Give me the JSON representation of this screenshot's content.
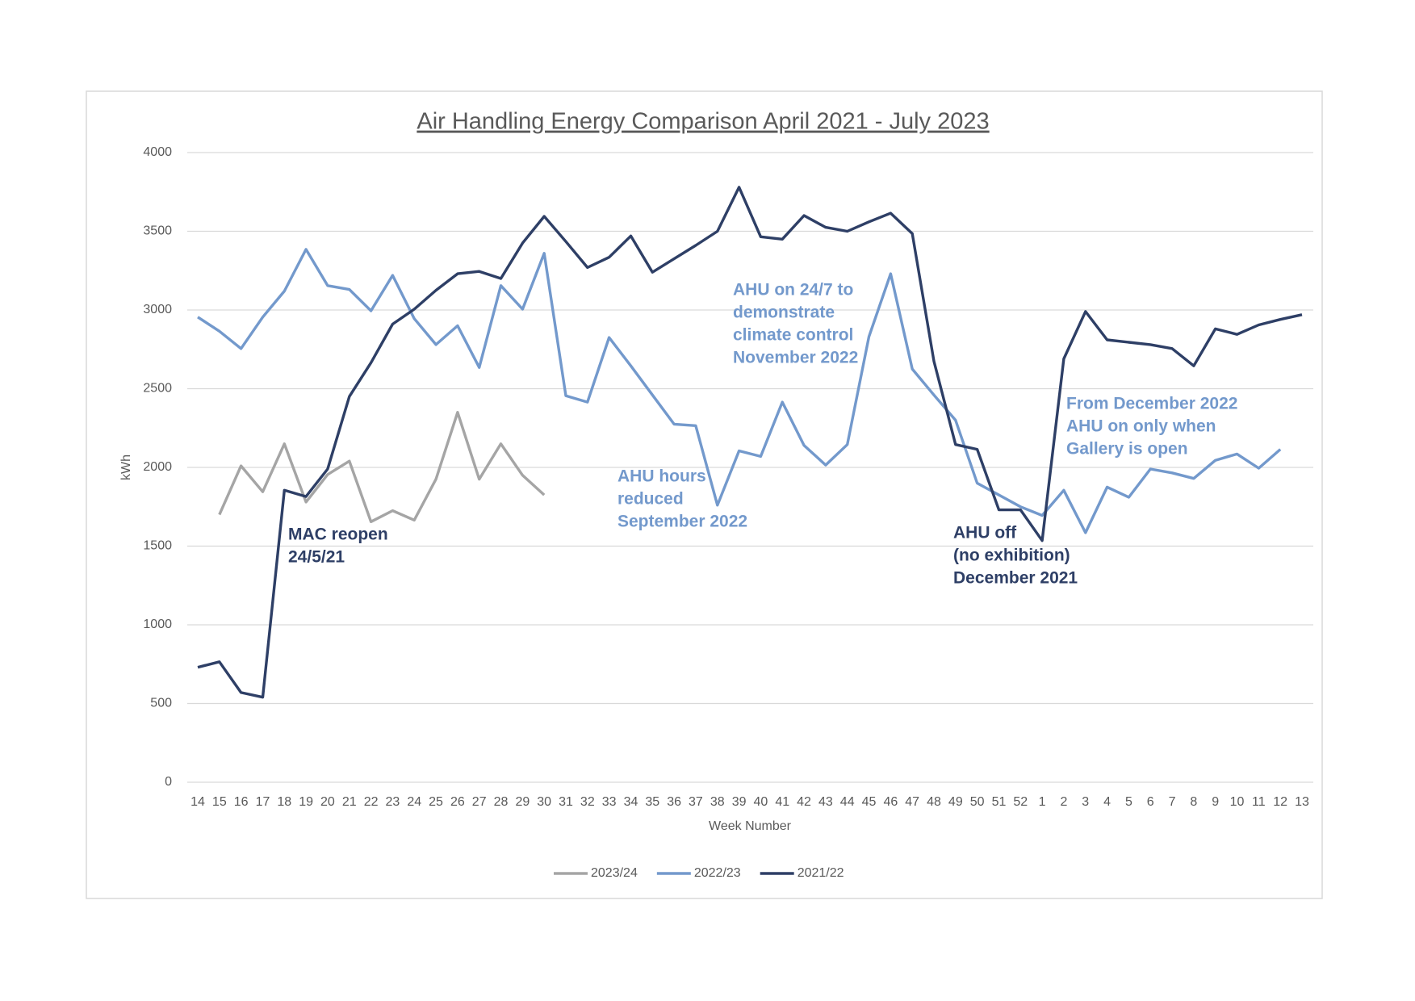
{
  "chart_data": {
    "type": "line",
    "title": "Air Handling Energy Comparison April 2021 - July 2023",
    "x_label": "Week Number",
    "y_label": "kWh",
    "categories": [
      "14",
      "15",
      "16",
      "17",
      "18",
      "19",
      "20",
      "21",
      "22",
      "23",
      "24",
      "25",
      "26",
      "27",
      "28",
      "29",
      "30",
      "31",
      "32",
      "33",
      "34",
      "35",
      "36",
      "37",
      "38",
      "39",
      "40",
      "41",
      "42",
      "43",
      "44",
      "45",
      "46",
      "47",
      "48",
      "49",
      "50",
      "51",
      "52",
      "1",
      "2",
      "3",
      "4",
      "5",
      "6",
      "7",
      "8",
      "9",
      "10",
      "11",
      "12",
      "13"
    ],
    "ylim": [
      0,
      4000
    ],
    "yticks": [
      0,
      500,
      1000,
      1500,
      2000,
      2500,
      3000,
      3500,
      4000
    ],
    "grid": true,
    "legend": "bottom",
    "series": [
      {
        "name": "2023/24",
        "color": "#a5a5a5",
        "values": [
          null,
          1700,
          2010,
          1845,
          2150,
          1780,
          1955,
          2040,
          1655,
          1725,
          1665,
          1925,
          2350,
          1925,
          2150,
          1950,
          1825,
          null,
          null,
          null,
          null,
          null,
          null,
          null,
          null,
          null,
          null,
          null,
          null,
          null,
          null,
          null,
          null,
          null,
          null,
          null,
          null,
          null,
          null,
          null,
          null,
          null,
          null,
          null,
          null,
          null,
          null,
          null,
          null,
          null,
          null,
          null
        ]
      },
      {
        "name": "2022/23",
        "color": "#7399cc",
        "values": [
          2955,
          2865,
          2755,
          2955,
          3120,
          3385,
          3155,
          3130,
          2995,
          3220,
          2945,
          2780,
          2900,
          2635,
          3155,
          3005,
          3360,
          2455,
          2415,
          2825,
          2645,
          2460,
          2275,
          2265,
          1760,
          2105,
          2070,
          2415,
          2140,
          2015,
          2145,
          2830,
          3230,
          2625,
          2460,
          2300,
          1900,
          1825,
          1750,
          1695,
          1855,
          1585,
          1875,
          1810,
          1990,
          1965,
          1930,
          2045,
          2085,
          1995,
          2115,
          null
        ]
      },
      {
        "name": "2021/22",
        "color": "#2e3f66",
        "values": [
          730,
          765,
          570,
          540,
          1855,
          1815,
          1990,
          2450,
          2665,
          2910,
          3005,
          3125,
          3230,
          3245,
          3200,
          3425,
          3595,
          3435,
          3270,
          3335,
          3470,
          3240,
          3325,
          3410,
          3500,
          3780,
          3465,
          3450,
          3600,
          3525,
          3500,
          3560,
          3615,
          3485,
          2675,
          2145,
          2115,
          1730,
          1730,
          1535,
          2690,
          2990,
          2810,
          2795,
          2780,
          2755,
          2645,
          2880,
          2845,
          2905,
          2940,
          2970
        ]
      }
    ],
    "annotations": [
      {
        "lines": [
          "MAC reopen",
          "24/5/21"
        ],
        "color": "#2e3f66"
      },
      {
        "lines": [
          "AHU hours",
          "reduced",
          "September 2022"
        ],
        "color": "#7399cc"
      },
      {
        "lines": [
          "AHU on 24/7 to",
          "demonstrate",
          "climate control",
          "November 2022"
        ],
        "color": "#7399cc"
      },
      {
        "lines": [
          "AHU off",
          "(no exhibition)",
          "December 2021"
        ],
        "color": "#2e3f66"
      },
      {
        "lines": [
          "From December 2022",
          "AHU on only when",
          "Gallery is open"
        ],
        "color": "#7399cc"
      }
    ]
  }
}
